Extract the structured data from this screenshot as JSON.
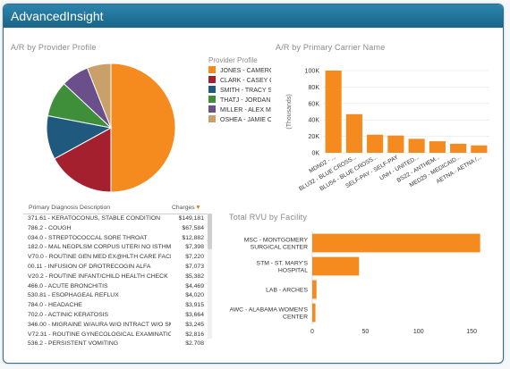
{
  "app": {
    "title": "AdvancedInsight"
  },
  "provider_panel": {
    "title": "A/R by Provider Profile",
    "legend_title": "Provider Profile",
    "legend": [
      {
        "label": "JONES - CAMERO",
        "color": "#f58a1f"
      },
      {
        "label": "CLARK - CASEY C",
        "color": "#a5202f"
      },
      {
        "label": "SMITH - TRACY S",
        "color": "#1f5a7e"
      },
      {
        "label": "THATJ - JORDAN",
        "color": "#3f8f3a"
      },
      {
        "label": "MILLER - ALEX M",
        "color": "#6a4f8a"
      },
      {
        "label": "OSHEA - JAMIE O",
        "color": "#c9a06a"
      }
    ]
  },
  "carrier_panel": {
    "title": "A/R by Primary Carrier Name"
  },
  "diagnosis_panel": {
    "col_desc": "Primary Diagnosis Description",
    "col_charges": "Charges",
    "sort_icon": "▼",
    "rows": [
      {
        "desc": "371.61 - KERATOCONUS, STABLE CONDITION",
        "amt": "$149,181"
      },
      {
        "desc": "786.2 - COUGH",
        "amt": "$67,584"
      },
      {
        "desc": "034.0 - STREPTOCOCCAL SORE THROAT",
        "amt": "$12,882"
      },
      {
        "desc": "182.0 - MAL NEOPLSM CORPUS UTERI NO ISTHMUS",
        "amt": "$7,398"
      },
      {
        "desc": "V70.0 - ROUTINE GEN MED EX@HLTH CARE FACL",
        "amt": "$7,220"
      },
      {
        "desc": "00.11 - INFUSION OF DROTRECOGIN ALFA",
        "amt": "$7,073"
      },
      {
        "desc": "V20.2 - ROUTINE INFANT/CHILD HEALTH CHECK",
        "amt": "$5,382"
      },
      {
        "desc": "466.0 - ACUTE BRONCHITIS",
        "amt": "$4,469"
      },
      {
        "desc": "530.81 - ESOPHAGEAL REFLUX",
        "amt": "$4,020"
      },
      {
        "desc": "784.0 - HEADACHE",
        "amt": "$3,915"
      },
      {
        "desc": "702.0 - ACTINIC KERATOSIS",
        "amt": "$3,664"
      },
      {
        "desc": "346.00 - MIGRAINE W/AURA W/O INTRACT W/O SM",
        "amt": "$3,245"
      },
      {
        "desc": "V72.31 - ROUTINE GYNECOLOGICAL EXAMINATION",
        "amt": "$2,816"
      },
      {
        "desc": "536.2 - PERSISTENT VOMITING",
        "amt": "$2,708"
      }
    ]
  },
  "rvu_panel": {
    "title": "Total RVU by Facility"
  },
  "chart_data": [
    {
      "type": "pie",
      "title": "A/R by Provider Profile",
      "categories": [
        "JONES - CAMERO",
        "CLARK - CASEY C",
        "SMITH - TRACY S",
        "THATJ - JORDAN",
        "MILLER - ALEX M",
        "OSHEA - JAMIE O"
      ],
      "values": [
        50,
        17,
        11,
        9,
        7,
        6
      ],
      "colors": [
        "#f58a1f",
        "#a5202f",
        "#1f5a7e",
        "#3f8f3a",
        "#6a4f8a",
        "#c9a06a"
      ]
    },
    {
      "type": "bar",
      "title": "A/R by Primary Carrier Name",
      "ylabel": "(Thousands)",
      "categories": [
        "MDN02 - ...",
        "BLU32 - BLUE CROSS...",
        "BLU54 - BLUE CROSS...",
        "SELF-PAY - SELF-PAY",
        "UNH - UNITED...",
        "BS22 - ANTHEM...",
        "MED29 - MEDICAID...",
        "AETNA - AETNA /..."
      ],
      "values": [
        100,
        47,
        22,
        21,
        17,
        14,
        11,
        9
      ],
      "ylim": [
        0,
        100
      ],
      "yticks": [
        "0K",
        "20K",
        "40K",
        "60K",
        "80K",
        "100K"
      ],
      "color": "#f58a1f"
    },
    {
      "type": "bar",
      "orientation": "horizontal",
      "title": "Total RVU by Facility",
      "categories": [
        "MSC - MONTGOMERY SURGICAL CENTER",
        "STM - ST. MARY'S HOSPITAL",
        "LAB - ARCHES",
        "AWC - ALABAMA WOMEN'S CENTER"
      ],
      "values": [
        158,
        44,
        4,
        3
      ],
      "xlim": [
        0,
        160
      ],
      "xticks": [
        "0",
        "50",
        "100",
        "150"
      ],
      "color": "#f58a1f"
    }
  ]
}
